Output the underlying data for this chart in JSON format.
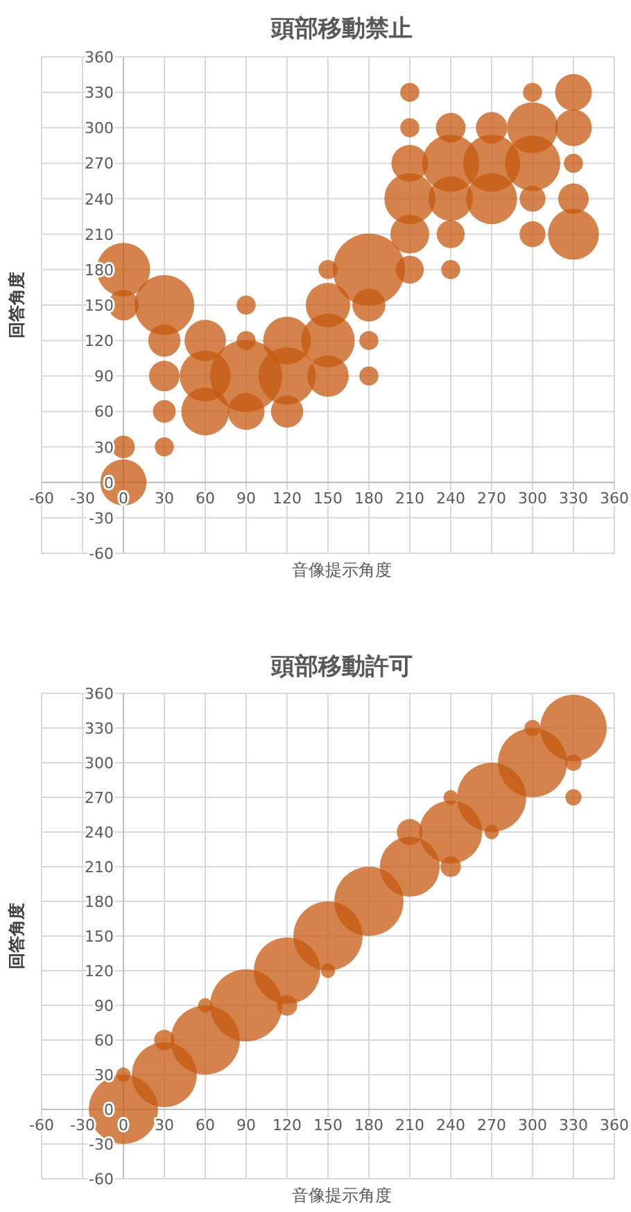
{
  "chart_data": [
    {
      "type": "bubble",
      "title": "頭部移動禁止",
      "xlabel": "音像提示角度",
      "ylabel": "回答角度",
      "xlim": [
        -60,
        360
      ],
      "ylim": [
        -60,
        360
      ],
      "xticks": [
        -60,
        -30,
        0,
        30,
        60,
        90,
        120,
        150,
        180,
        210,
        240,
        270,
        300,
        330,
        360
      ],
      "yticks": [
        -60,
        -30,
        0,
        30,
        60,
        90,
        120,
        150,
        180,
        210,
        240,
        270,
        300,
        330,
        360
      ],
      "grid": true,
      "series": [
        {
          "color": "#c55a11",
          "x": [
            0,
            0,
            0,
            0,
            30,
            30,
            30,
            30,
            30,
            60,
            60,
            60,
            90,
            90,
            90,
            90,
            120,
            120,
            120,
            150,
            150,
            150,
            150,
            180,
            180,
            180,
            180,
            210,
            210,
            210,
            210,
            210,
            210,
            240,
            240,
            240,
            240,
            240,
            270,
            270,
            270,
            300,
            300,
            300,
            300,
            300,
            330,
            330,
            330,
            330,
            330
          ],
          "values": [
            180,
            150,
            30,
            0,
            150,
            120,
            90,
            60,
            30,
            120,
            90,
            60,
            150,
            120,
            90,
            60,
            120,
            90,
            60,
            180,
            150,
            120,
            90,
            180,
            150,
            120,
            90,
            330,
            300,
            270,
            240,
            210,
            180,
            300,
            270,
            240,
            210,
            180,
            300,
            270,
            240,
            330,
            300,
            270,
            240,
            210,
            330,
            300,
            270,
            240,
            210
          ],
          "sizes": [
            0.55,
            0.18,
            0.1,
            0.41,
            0.69,
            0.2,
            0.18,
            0.1,
            0.07,
            0.33,
            0.5,
            0.44,
            0.07,
            0.07,
            1,
            0.26,
            0.44,
            0.63,
            0.2,
            0.07,
            0.38,
            0.55,
            0.33,
            1,
            0.21,
            0.07,
            0.07,
            0.07,
            0.07,
            0.26,
            0.5,
            0.29,
            0.15,
            0.17,
            0.63,
            0.38,
            0.15,
            0.07,
            0.19,
            0.63,
            0.5,
            0.07,
            0.5,
            0.59,
            0.13,
            0.13,
            0.26,
            0.26,
            0.07,
            0.18,
            0.5
          ]
        }
      ]
    },
    {
      "type": "bubble",
      "title": "頭部移動許可",
      "xlabel": "音像提示角度",
      "ylabel": "回答角度",
      "xlim": [
        -60,
        360
      ],
      "ylim": [
        -60,
        360
      ],
      "xticks": [
        -60,
        -30,
        0,
        30,
        60,
        90,
        120,
        150,
        180,
        210,
        240,
        270,
        300,
        330,
        360
      ],
      "yticks": [
        -60,
        -30,
        0,
        30,
        60,
        90,
        120,
        150,
        180,
        210,
        240,
        270,
        300,
        330,
        360
      ],
      "grid": true,
      "series": [
        {
          "color": "#c55a11",
          "x": [
            0,
            0,
            30,
            30,
            60,
            60,
            90,
            120,
            120,
            150,
            150,
            180,
            210,
            210,
            240,
            240,
            240,
            270,
            270,
            300,
            300,
            330,
            330,
            330
          ],
          "values": [
            0,
            30,
            30,
            60,
            60,
            90,
            90,
            120,
            90,
            150,
            120,
            180,
            210,
            240,
            240,
            210,
            270,
            270,
            240,
            300,
            330,
            330,
            300,
            270
          ],
          "sizes": [
            0.92,
            0.04,
            0.81,
            0.08,
            0.92,
            0.04,
            1,
            0.85,
            0.08,
            0.92,
            0.04,
            0.92,
            0.69,
            0.13,
            0.76,
            0.08,
            0.04,
            0.92,
            0.04,
            0.92,
            0.05,
            0.85,
            0.05,
            0.05
          ]
        }
      ]
    }
  ]
}
